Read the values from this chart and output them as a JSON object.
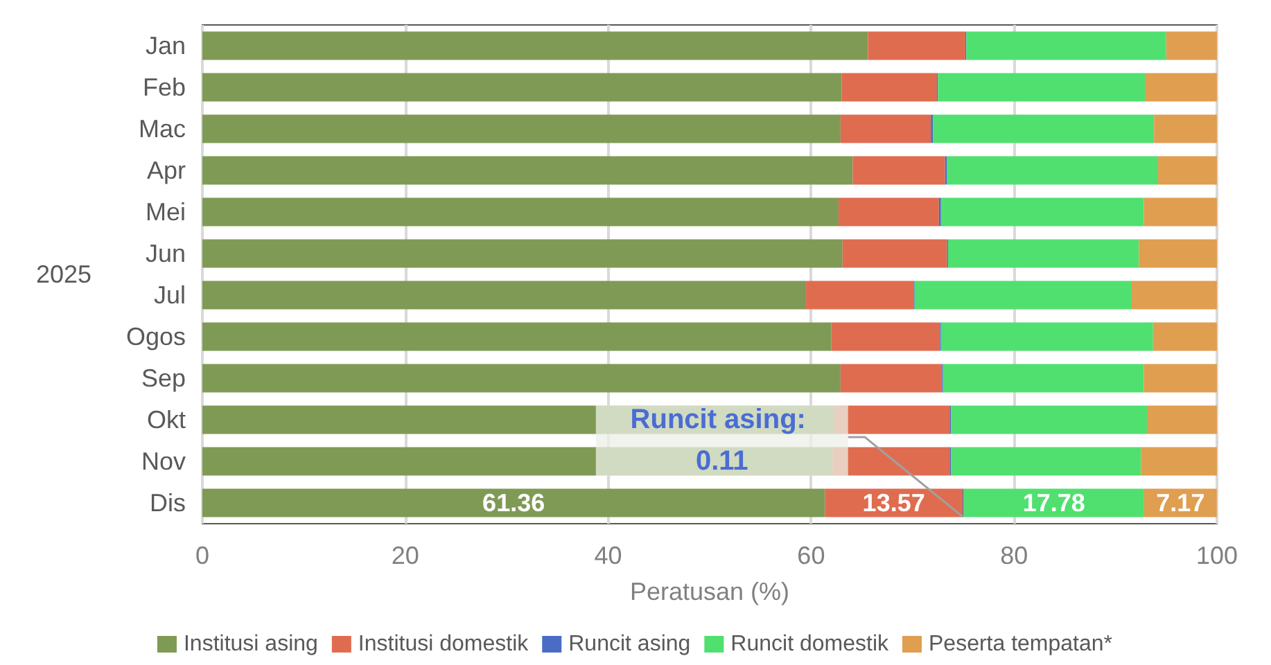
{
  "chart_data": {
    "type": "bar",
    "orientation": "horizontal",
    "stacked": true,
    "xlabel": "Peratusan (%)",
    "ylabel": "2025",
    "categories": [
      "Jan",
      "Feb",
      "Mac",
      "Apr",
      "Mei",
      "Jun",
      "Jul",
      "Ogos",
      "Sep",
      "Okt",
      "Nov",
      "Dis"
    ],
    "series": [
      {
        "name": "Institusi asing",
        "color": "#7f9a55",
        "values": [
          65.6,
          63.0,
          62.9,
          64.1,
          62.7,
          63.1,
          59.5,
          62.0,
          62.9,
          62.3,
          62.1,
          61.36
        ],
        "value_labels": [
          null,
          null,
          null,
          null,
          null,
          null,
          null,
          null,
          null,
          null,
          null,
          "61.36"
        ]
      },
      {
        "name": "Institusi domestik",
        "color": "#e06c50",
        "values": [
          9.6,
          9.4,
          8.9,
          9.1,
          9.9,
          10.3,
          10.6,
          10.7,
          10.0,
          11.4,
          11.6,
          13.57
        ],
        "value_labels": [
          null,
          null,
          null,
          null,
          null,
          null,
          null,
          null,
          null,
          null,
          null,
          "13.57"
        ]
      },
      {
        "name": "Runcit asing",
        "color": "#4a6cc4",
        "values": [
          0.1,
          0.1,
          0.2,
          0.2,
          0.2,
          0.1,
          0.1,
          0.1,
          0.1,
          0.1,
          0.1,
          0.11
        ]
      },
      {
        "name": "Runcit domestik",
        "color": "#50e070",
        "values": [
          19.7,
          20.4,
          21.8,
          20.8,
          20.0,
          18.8,
          21.4,
          20.9,
          19.8,
          19.3,
          18.7,
          17.78
        ],
        "value_labels": [
          null,
          null,
          null,
          null,
          null,
          null,
          null,
          null,
          null,
          null,
          null,
          "17.78"
        ]
      },
      {
        "name": "Peserta tempatan*",
        "color": "#e09e50",
        "values": [
          5.0,
          7.1,
          6.2,
          5.8,
          7.2,
          7.7,
          8.4,
          6.3,
          7.2,
          6.9,
          7.5,
          7.17
        ],
        "value_labels": [
          null,
          null,
          null,
          null,
          null,
          null,
          null,
          null,
          null,
          null,
          null,
          "7.17"
        ]
      }
    ],
    "xlim": [
      0,
      100
    ],
    "xticks": [
      0,
      20,
      40,
      60,
      80,
      100
    ],
    "grid": "x",
    "legend": "bottom",
    "annotations": [
      "Runcit asing: 0.11"
    ]
  }
}
